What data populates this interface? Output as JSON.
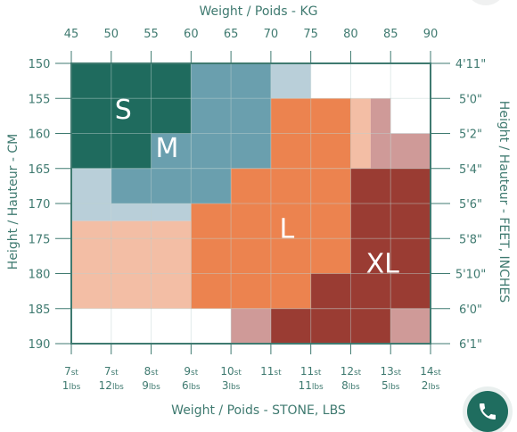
{
  "page": {
    "top_axis_title": "Weight / Poids - KG",
    "bottom_axis_title": "Weight / Poids - STONE, LBS",
    "left_axis_title": "Height / Hauteur - CM",
    "right_axis_title": "Height / Hauteur - FEET, INCHES"
  },
  "chart_data": {
    "type": "heatmap",
    "x_kg": {
      "ticks": [
        45,
        50,
        55,
        60,
        65,
        70,
        75,
        80,
        85,
        90
      ],
      "range": [
        45,
        90
      ]
    },
    "y_cm": {
      "ticks": [
        150,
        155,
        160,
        165,
        170,
        175,
        180,
        185,
        190
      ],
      "range": [
        150,
        190
      ]
    },
    "x_stone_lbs_labels": [
      {
        "st": "7",
        "lbs": "1"
      },
      {
        "st": "7",
        "lbs": "12"
      },
      {
        "st": "8",
        "lbs": "9"
      },
      {
        "st": "9",
        "lbs": "6"
      },
      {
        "st": "10",
        "lbs": "3"
      },
      {
        "st": "11",
        "lbs": ""
      },
      {
        "st": "11",
        "lbs": "11"
      },
      {
        "st": "12",
        "lbs": "8"
      },
      {
        "st": "13",
        "lbs": "5"
      },
      {
        "st": "14",
        "lbs": "2"
      }
    ],
    "y_feet_inches_labels": [
      "4'11\"",
      "5'0\"",
      "5'2\"",
      "5'4\"",
      "5'6\"",
      "5'8\"",
      "5'10\"",
      "6'0\"",
      "6'1\""
    ],
    "colors": {
      "S": "#1f6b5e",
      "M": "#6a9fae",
      "M_light": "#b9cfd9",
      "L": "#ec834f",
      "L_light": "#f3bea5",
      "XL": "#9a3c33",
      "XL_light": "#cf9a98",
      "grid": "#3f7a70",
      "empty": "#ffffff"
    },
    "size_labels": [
      {
        "label": "S",
        "kg": 51.5,
        "cm": 156.5
      },
      {
        "label": "M",
        "kg": 57,
        "cm": 162
      },
      {
        "label": "L",
        "kg": 72,
        "cm": 173.5
      },
      {
        "label": "XL",
        "kg": 84,
        "cm": 178.5
      }
    ],
    "cells": [
      {
        "kg": [
          45,
          60
        ],
        "cm": [
          150,
          160
        ],
        "c": "S"
      },
      {
        "kg": [
          45,
          55
        ],
        "cm": [
          160,
          165
        ],
        "c": "S"
      },
      {
        "kg": [
          60,
          70
        ],
        "cm": [
          150,
          165
        ],
        "c": "M"
      },
      {
        "kg": [
          55,
          60
        ],
        "cm": [
          160,
          165
        ],
        "c": "M"
      },
      {
        "kg": [
          50,
          65
        ],
        "cm": [
          165,
          170
        ],
        "c": "M"
      },
      {
        "kg": [
          70,
          75
        ],
        "cm": [
          150,
          155
        ],
        "c": "M_light"
      },
      {
        "kg": [
          45,
          50
        ],
        "cm": [
          165,
          172.5
        ],
        "c": "M_light"
      },
      {
        "kg": [
          50,
          60
        ],
        "cm": [
          170,
          172.5
        ],
        "c": "M_light"
      },
      {
        "kg": [
          70,
          80
        ],
        "cm": [
          155,
          165
        ],
        "c": "L"
      },
      {
        "kg": [
          65,
          80
        ],
        "cm": [
          165,
          170
        ],
        "c": "L"
      },
      {
        "kg": [
          60,
          80
        ],
        "cm": [
          170,
          180
        ],
        "c": "L"
      },
      {
        "kg": [
          60,
          75
        ],
        "cm": [
          180,
          185
        ],
        "c": "L"
      },
      {
        "kg": [
          80,
          82.5
        ],
        "cm": [
          155,
          165
        ],
        "c": "L_light"
      },
      {
        "kg": [
          45,
          60
        ],
        "cm": [
          172.5,
          185
        ],
        "c": "L_light"
      },
      {
        "kg": [
          82.5,
          85
        ],
        "cm": [
          155,
          165
        ],
        "c": "XL_light"
      },
      {
        "kg": [
          85,
          90
        ],
        "cm": [
          160,
          165
        ],
        "c": "XL_light"
      },
      {
        "kg": [
          65,
          70
        ],
        "cm": [
          185,
          190
        ],
        "c": "XL_light"
      },
      {
        "kg": [
          85,
          90
        ],
        "cm": [
          185,
          190
        ],
        "c": "XL_light"
      },
      {
        "kg": [
          80,
          90
        ],
        "cm": [
          165,
          180
        ],
        "c": "XL"
      },
      {
        "kg": [
          75,
          90
        ],
        "cm": [
          180,
          185
        ],
        "c": "XL"
      },
      {
        "kg": [
          70,
          85
        ],
        "cm": [
          185,
          190
        ],
        "c": "XL"
      }
    ]
  }
}
